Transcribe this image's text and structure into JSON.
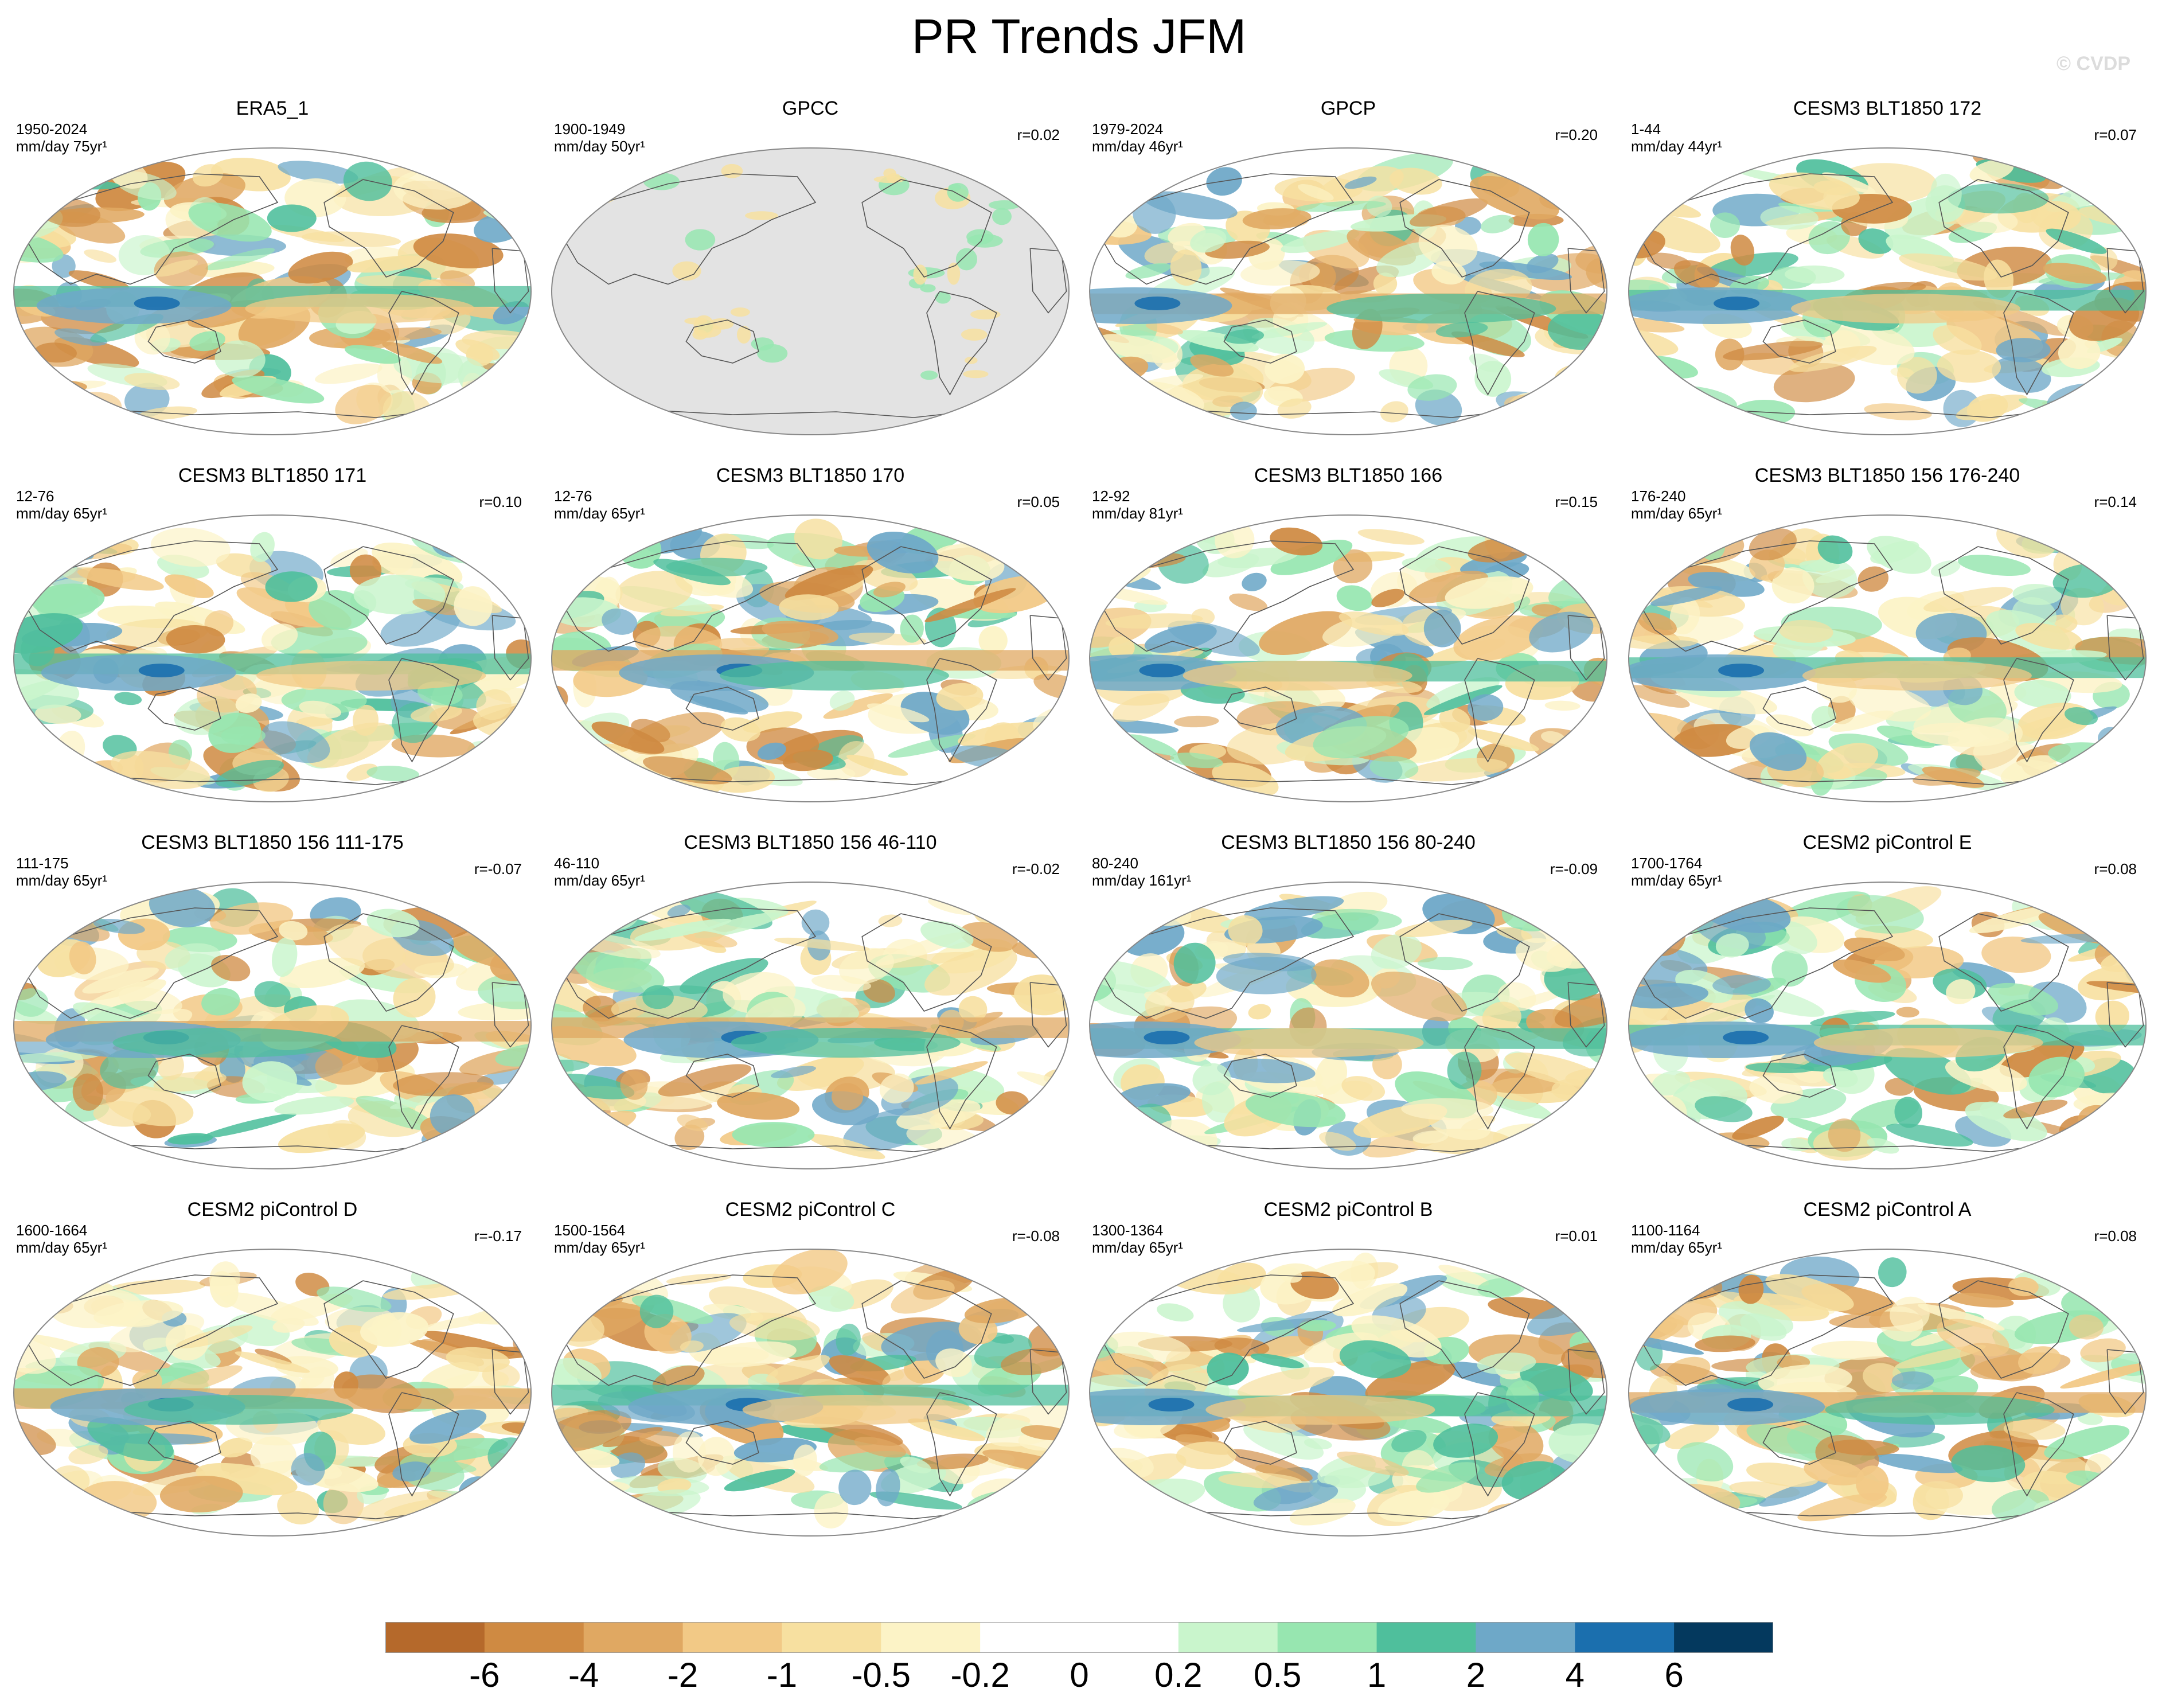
{
  "title": "PR Trends JFM",
  "watermark": "© CVDP",
  "panels": [
    {
      "title": "ERA5_1",
      "period": "1950-2024",
      "units": "mm/day 75yr¹",
      "r": "",
      "masked": false
    },
    {
      "title": "GPCC",
      "period": "1900-1949",
      "units": "mm/day 50yr¹",
      "r": "r=0.02",
      "masked": true
    },
    {
      "title": "GPCP",
      "period": "1979-2024",
      "units": "mm/day 46yr¹",
      "r": "r=0.20",
      "masked": false
    },
    {
      "title": "CESM3 BLT1850 172",
      "period": "1-44",
      "units": "mm/day 44yr¹",
      "r": "r=0.07",
      "masked": false
    },
    {
      "title": "CESM3 BLT1850 171",
      "period": "12-76",
      "units": "mm/day 65yr¹",
      "r": "r=0.10",
      "masked": false
    },
    {
      "title": "CESM3 BLT1850 170",
      "period": "12-76",
      "units": "mm/day 65yr¹",
      "r": "r=0.05",
      "masked": false
    },
    {
      "title": "CESM3 BLT1850 166",
      "period": "12-92",
      "units": "mm/day 81yr¹",
      "r": "r=0.15",
      "masked": false
    },
    {
      "title": "CESM3 BLT1850 156 176-240",
      "period": "176-240",
      "units": "mm/day 65yr¹",
      "r": "r=0.14",
      "masked": false
    },
    {
      "title": "CESM3 BLT1850 156 111-175",
      "period": "111-175",
      "units": "mm/day 65yr¹",
      "r": "r=-0.07",
      "masked": false
    },
    {
      "title": "CESM3 BLT1850 156 46-110",
      "period": "46-110",
      "units": "mm/day 65yr¹",
      "r": "r=-0.02",
      "masked": false
    },
    {
      "title": "CESM3 BLT1850 156 80-240",
      "period": "80-240",
      "units": "mm/day 161yr¹",
      "r": "r=-0.09",
      "masked": false
    },
    {
      "title": "CESM2 piControl E",
      "period": "1700-1764",
      "units": "mm/day 65yr¹",
      "r": "r=0.08",
      "masked": false
    },
    {
      "title": "CESM2 piControl D",
      "period": "1600-1664",
      "units": "mm/day 65yr¹",
      "r": "r=-0.17",
      "masked": false
    },
    {
      "title": "CESM2 piControl C",
      "period": "1500-1564",
      "units": "mm/day 65yr¹",
      "r": "r=-0.08",
      "masked": false
    },
    {
      "title": "CESM2 piControl B",
      "period": "1300-1364",
      "units": "mm/day 65yr¹",
      "r": "r=0.01",
      "masked": false
    },
    {
      "title": "CESM2 piControl A",
      "period": "1100-1164",
      "units": "mm/day 65yr¹",
      "r": "r=0.08",
      "masked": false
    }
  ],
  "colorbar": {
    "colors": [
      "#b5692b",
      "#cf8a42",
      "#e0a862",
      "#f2c986",
      "#f7e0a0",
      "#fcf3c6",
      "#ffffff",
      "#ffffff",
      "#c9f5cc",
      "#97e6b0",
      "#4fbf9c",
      "#6ea8c8",
      "#1b6fae",
      "#04395e"
    ],
    "labels": [
      "-6",
      "-4",
      "-2",
      "-1",
      "-0.5",
      "-0.2",
      "0",
      "0.2",
      "0.5",
      "1",
      "2",
      "4",
      "6"
    ]
  }
}
